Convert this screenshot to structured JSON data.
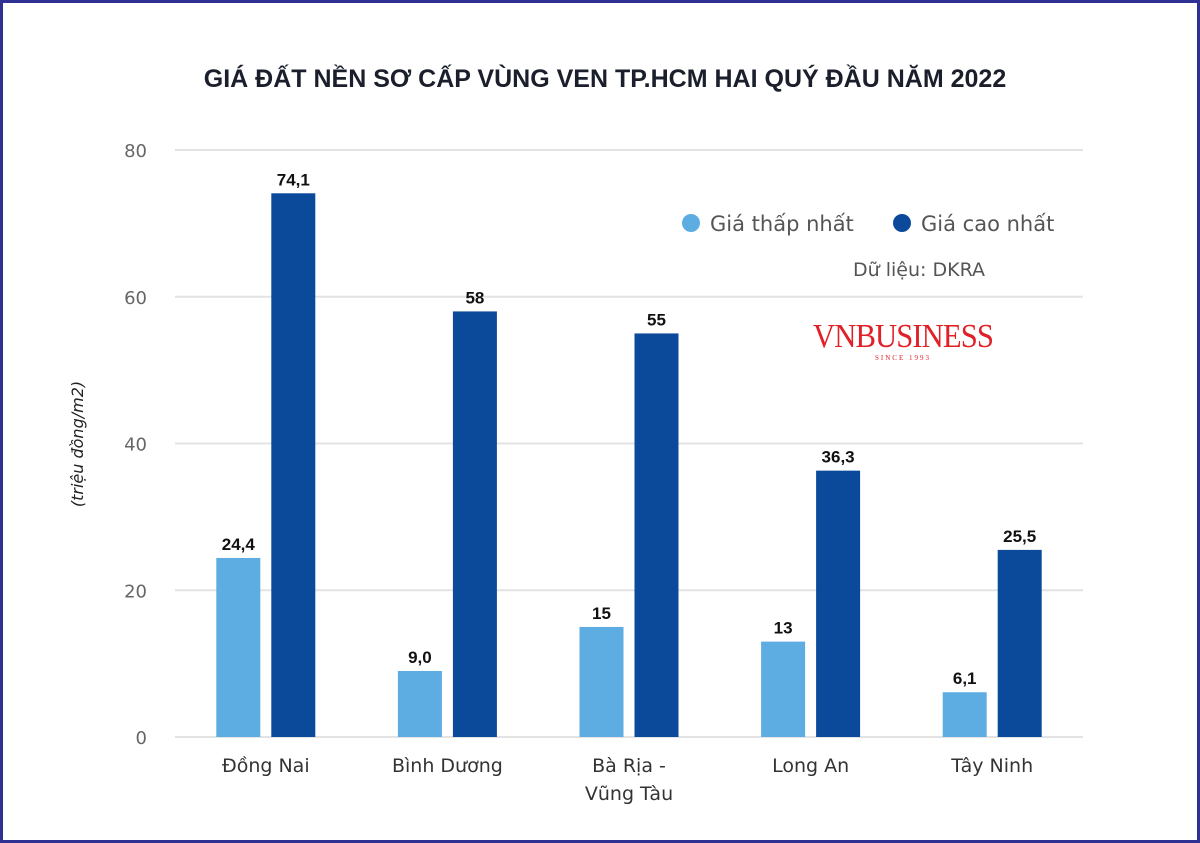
{
  "chart_data": {
    "type": "bar",
    "title": "GIÁ ĐẤT NỀN SƠ CẤP VÙNG VEN TP.HCM HAI QUÝ ĐẦU NĂM 2022",
    "ylabel": "(triệu đồng/m2)",
    "xlabel": "",
    "ylim": [
      0,
      80
    ],
    "yticks": [
      0,
      20,
      40,
      60,
      80
    ],
    "grid": true,
    "legend_placement": "top-right",
    "categories": [
      [
        "Đồng Nai"
      ],
      [
        "Bình Dương"
      ],
      [
        "Bà Rịa -",
        "Vũng Tàu"
      ],
      [
        "Long An"
      ],
      [
        "Tây Ninh"
      ]
    ],
    "series": [
      {
        "name": "Giá thấp nhất",
        "color": "#5dade2",
        "values": [
          24.4,
          9.0,
          15,
          13,
          6.1
        ],
        "labels": [
          "24,4",
          "9,0",
          "15",
          "13",
          "6,1"
        ]
      },
      {
        "name": "Giá cao nhất",
        "color": "#0b4a9a",
        "values": [
          74.1,
          58,
          55,
          36.3,
          25.5
        ],
        "labels": [
          "74,1",
          "58",
          "55",
          "36,3",
          "25,5"
        ]
      }
    ],
    "source": "Dữ liệu: DKRA"
  },
  "logo": {
    "text": "VNBUSINESS",
    "tagline": "SINCE 1993"
  },
  "colors": {
    "border": "#2e3192",
    "logo": "#e11f26"
  }
}
